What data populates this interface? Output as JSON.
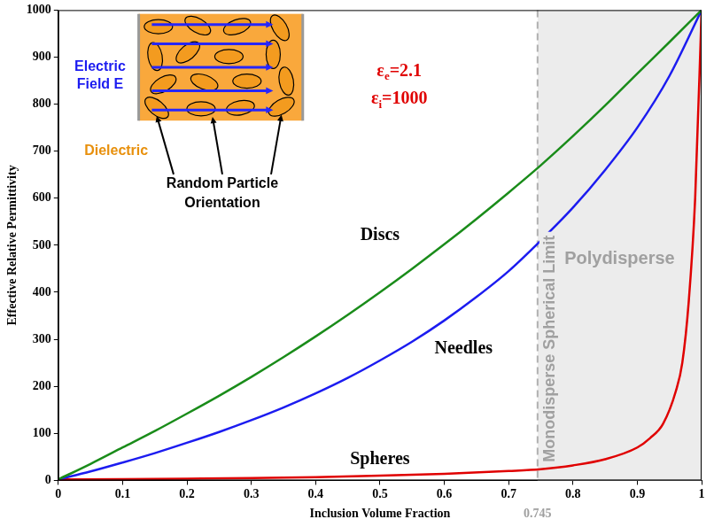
{
  "chart_data": {
    "type": "line",
    "x_label": "Inclusion Volume Fraction",
    "y_label": "Effective Relative Permittivity",
    "xlim": [
      0,
      1
    ],
    "xticks": [
      0,
      0.1,
      0.2,
      0.3,
      0.4,
      0.5,
      0.6,
      0.7,
      0.8,
      0.9,
      1
    ],
    "ylim": [
      0,
      1000
    ],
    "yticks": [
      0,
      100,
      200,
      300,
      400,
      500,
      600,
      700,
      800,
      900,
      1000
    ],
    "grid": false,
    "series": [
      {
        "name": "Discs",
        "color": "#1a8c1a",
        "line_style": "solid",
        "marker": "none",
        "x": [
          0,
          0.05,
          0.1,
          0.15,
          0.2,
          0.25,
          0.3,
          0.35,
          0.4,
          0.45,
          0.5,
          0.55,
          0.6,
          0.65,
          0.7,
          0.75,
          0.8,
          0.85,
          0.9,
          0.95,
          1
        ],
        "values": [
          2.1,
          35,
          70,
          105,
          142,
          180,
          220,
          262,
          306,
          352,
          400,
          450,
          502,
          556,
          612,
          670,
          732,
          797,
          865,
          932,
          1000
        ]
      },
      {
        "name": "Needles",
        "color": "#1c1cf0",
        "line_style": "solid",
        "marker": "none",
        "x": [
          0,
          0.05,
          0.1,
          0.15,
          0.2,
          0.25,
          0.3,
          0.35,
          0.4,
          0.45,
          0.5,
          0.55,
          0.6,
          0.65,
          0.7,
          0.75,
          0.8,
          0.85,
          0.9,
          0.95,
          1
        ],
        "values": [
          2.1,
          19,
          38,
          58,
          80,
          103,
          128,
          155,
          185,
          218,
          255,
          295,
          340,
          390,
          445,
          510,
          580,
          660,
          750,
          860,
          1000
        ]
      },
      {
        "name": "Spheres",
        "color": "#e00000",
        "line_style": "solid",
        "marker": "none",
        "x": [
          0,
          0.1,
          0.2,
          0.3,
          0.4,
          0.5,
          0.6,
          0.7,
          0.75,
          0.8,
          0.85,
          0.9,
          0.92,
          0.94,
          0.96,
          0.97,
          0.98,
          0.99,
          1
        ],
        "values": [
          2.1,
          2.8,
          3.8,
          5,
          7,
          10,
          14,
          20,
          24,
          32,
          45,
          70,
          90,
          120,
          190,
          250,
          380,
          600,
          1000
        ]
      }
    ],
    "annotations": [
      "εe=2.1",
      "εi=1000"
    ],
    "spherical_limit": {
      "x": 0.745,
      "label": "Monodisperse Spherical Limit"
    },
    "region": {
      "label": "Polydisperse",
      "xlim": [
        0.745,
        1
      ]
    },
    "inset": {
      "field_label": [
        "Electric",
        "Field E"
      ],
      "medium_label": "Dielectric",
      "particles_label": [
        "Random Particle",
        "Orientation"
      ]
    }
  }
}
